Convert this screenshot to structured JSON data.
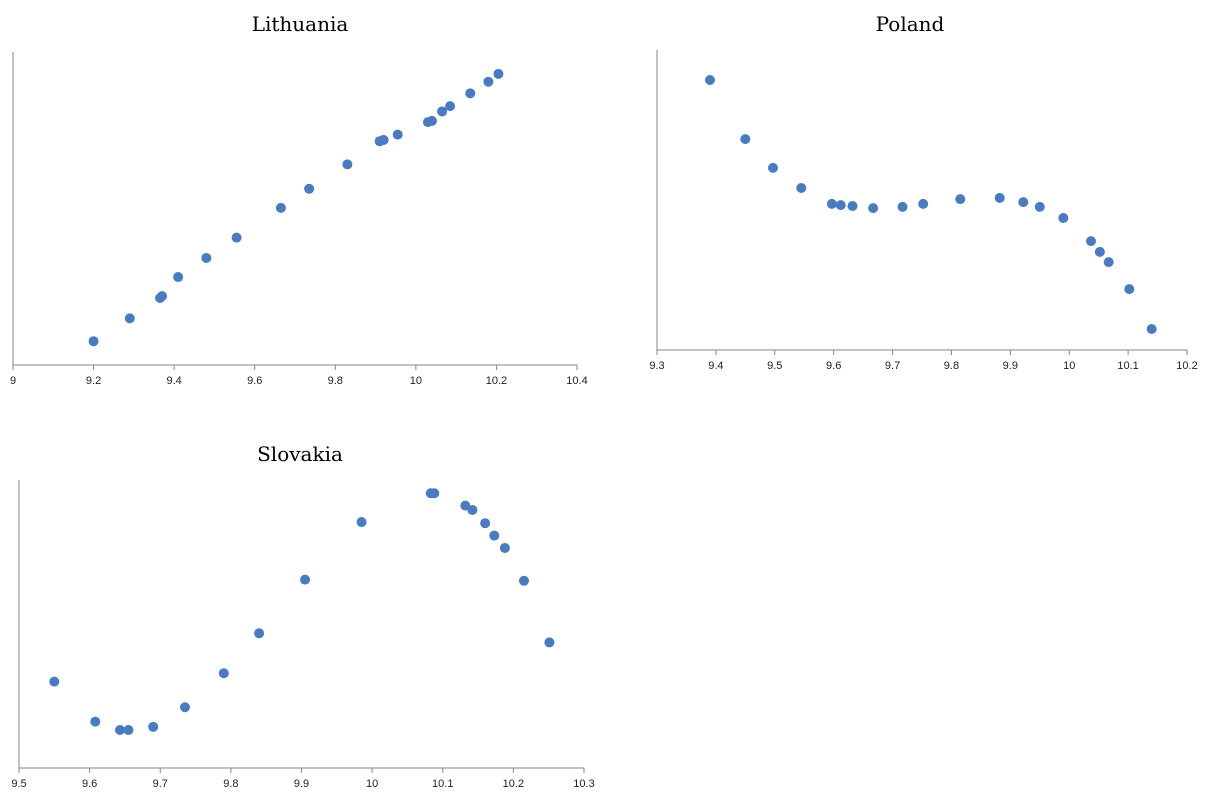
{
  "chart_data": [
    {
      "type": "scatter",
      "title": "Lithuania",
      "xlabel": "",
      "ylabel": "",
      "xlim": [
        9,
        10.4
      ],
      "xticks": [
        "9",
        "9.2",
        "9.4",
        "9.6",
        "9.8",
        "10",
        "10.2",
        "10.4"
      ],
      "ylim": [
        0,
        100
      ],
      "grid": false,
      "legend": "none",
      "color": "#4a7bbf",
      "points": [
        {
          "x": 9.2,
          "y": 7.6
        },
        {
          "x": 9.29,
          "y": 14.9
        },
        {
          "x": 9.365,
          "y": 21.4
        },
        {
          "x": 9.37,
          "y": 22.0
        },
        {
          "x": 9.41,
          "y": 28.1
        },
        {
          "x": 9.48,
          "y": 34.2
        },
        {
          "x": 9.555,
          "y": 40.7
        },
        {
          "x": 9.665,
          "y": 50.2
        },
        {
          "x": 9.735,
          "y": 56.3
        },
        {
          "x": 9.83,
          "y": 64.1
        },
        {
          "x": 9.91,
          "y": 71.5
        },
        {
          "x": 9.92,
          "y": 71.9
        },
        {
          "x": 9.955,
          "y": 73.6
        },
        {
          "x": 10.03,
          "y": 77.6
        },
        {
          "x": 10.04,
          "y": 78.0
        },
        {
          "x": 10.065,
          "y": 81.0
        },
        {
          "x": 10.085,
          "y": 82.7
        },
        {
          "x": 10.135,
          "y": 86.8
        },
        {
          "x": 10.18,
          "y": 90.5
        },
        {
          "x": 10.205,
          "y": 93.0
        }
      ]
    },
    {
      "type": "scatter",
      "title": "Poland",
      "xlabel": "",
      "ylabel": "",
      "xlim": [
        9.3,
        10.2
      ],
      "xticks": [
        "9.3",
        "9.4",
        "9.5",
        "9.6",
        "9.7",
        "9.8",
        "9.9",
        "10",
        "10.1",
        "10.2"
      ],
      "ylim": [
        0,
        100
      ],
      "grid": false,
      "legend": "none",
      "color": "#4a7bbf",
      "points": [
        {
          "x": 9.39,
          "y": 90.0
        },
        {
          "x": 9.45,
          "y": 70.3
        },
        {
          "x": 9.497,
          "y": 60.7
        },
        {
          "x": 9.545,
          "y": 54.0
        },
        {
          "x": 9.597,
          "y": 48.7
        },
        {
          "x": 9.612,
          "y": 48.3
        },
        {
          "x": 9.632,
          "y": 48.0
        },
        {
          "x": 9.667,
          "y": 47.3
        },
        {
          "x": 9.717,
          "y": 47.7
        },
        {
          "x": 9.752,
          "y": 48.7
        },
        {
          "x": 9.815,
          "y": 50.3
        },
        {
          "x": 9.882,
          "y": 50.7
        },
        {
          "x": 9.922,
          "y": 49.3
        },
        {
          "x": 9.95,
          "y": 47.7
        },
        {
          "x": 9.99,
          "y": 44.0
        },
        {
          "x": 10.037,
          "y": 36.3
        },
        {
          "x": 10.052,
          "y": 32.7
        },
        {
          "x": 10.067,
          "y": 29.3
        },
        {
          "x": 10.102,
          "y": 20.3
        },
        {
          "x": 10.14,
          "y": 7.0
        }
      ]
    },
    {
      "type": "scatter",
      "title": "Slovakia",
      "xlabel": "",
      "ylabel": "",
      "xlim": [
        9.5,
        10.3
      ],
      "xticks": [
        "9.5",
        "9.6",
        "9.7",
        "9.8",
        "9.9",
        "10",
        "10.1",
        "10.2",
        "10.3"
      ],
      "ylim": [
        0,
        100
      ],
      "grid": false,
      "legend": "none",
      "color": "#4a7bbf",
      "points": [
        {
          "x": 9.55,
          "y": 30.0
        },
        {
          "x": 9.608,
          "y": 16.1
        },
        {
          "x": 9.643,
          "y": 13.2
        },
        {
          "x": 9.655,
          "y": 13.2
        },
        {
          "x": 9.69,
          "y": 14.3
        },
        {
          "x": 9.735,
          "y": 21.1
        },
        {
          "x": 9.79,
          "y": 32.9
        },
        {
          "x": 9.84,
          "y": 46.8
        },
        {
          "x": 9.905,
          "y": 65.4
        },
        {
          "x": 9.985,
          "y": 85.4
        },
        {
          "x": 10.083,
          "y": 95.4
        },
        {
          "x": 10.088,
          "y": 95.4
        },
        {
          "x": 10.132,
          "y": 91.1
        },
        {
          "x": 10.142,
          "y": 89.6
        },
        {
          "x": 10.16,
          "y": 85.0
        },
        {
          "x": 10.173,
          "y": 80.7
        },
        {
          "x": 10.188,
          "y": 76.4
        },
        {
          "x": 10.215,
          "y": 65.0
        },
        {
          "x": 10.251,
          "y": 43.6
        }
      ]
    }
  ]
}
